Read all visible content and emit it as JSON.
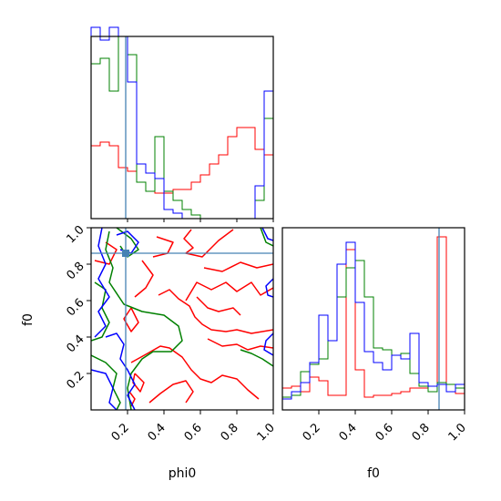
{
  "chart_data": {
    "type": "corner",
    "title": "",
    "parameters": [
      "phi0",
      "f0"
    ],
    "truth": {
      "phi0": 0.19,
      "f0": 0.86
    },
    "colors": {
      "red": "#ff0000",
      "green": "#008000",
      "blue": "#0000ff",
      "truth": "#4682b4"
    },
    "ticks": [
      "0.2",
      "0.4",
      "0.6",
      "0.8",
      "1.0"
    ],
    "xlabel_left": "phi0",
    "xlabel_right": "f0",
    "ylabel": "f0",
    "hist_phi0": {
      "edges": [
        0.0,
        0.05,
        0.1,
        0.15,
        0.2,
        0.25,
        0.3,
        0.35,
        0.4,
        0.45,
        0.5,
        0.55,
        0.6,
        0.65,
        0.7,
        0.75,
        0.8,
        0.85,
        0.9,
        0.95,
        1.0
      ],
      "series": [
        {
          "color": "red",
          "values": [
            0.4,
            0.42,
            0.4,
            0.28,
            0.26,
            0.2,
            0.15,
            0.14,
            0.14,
            0.16,
            0.16,
            0.2,
            0.24,
            0.3,
            0.35,
            0.45,
            0.5,
            0.5,
            0.38,
            0.35
          ]
        },
        {
          "color": "green",
          "values": [
            0.85,
            0.88,
            0.7,
            1.0,
            0.9,
            0.2,
            0.15,
            0.45,
            0.15,
            0.1,
            0.05,
            0.02,
            0.0,
            0.0,
            0.0,
            0.0,
            0.0,
            0.0,
            0.1,
            0.55
          ]
        },
        {
          "color": "blue",
          "values": [
            1.05,
            0.98,
            1.05,
            1.0,
            0.75,
            0.3,
            0.25,
            0.22,
            0.05,
            0.03,
            0.0,
            0.0,
            0.0,
            0.0,
            0.0,
            0.0,
            0.0,
            0.0,
            0.18,
            0.7
          ]
        }
      ]
    },
    "hist_f0": {
      "edges": [
        0.0,
        0.05,
        0.1,
        0.15,
        0.2,
        0.25,
        0.3,
        0.35,
        0.4,
        0.45,
        0.5,
        0.55,
        0.6,
        0.65,
        0.7,
        0.75,
        0.8,
        0.85,
        0.9,
        0.95,
        1.0
      ],
      "series": [
        {
          "color": "red",
          "values": [
            0.12,
            0.13,
            0.1,
            0.18,
            0.16,
            0.08,
            0.08,
            0.88,
            0.22,
            0.07,
            0.08,
            0.08,
            0.09,
            0.1,
            0.12,
            0.12,
            0.1,
            0.95,
            0.14,
            0.09
          ]
        },
        {
          "color": "green",
          "values": [
            0.07,
            0.08,
            0.21,
            0.25,
            0.28,
            0.38,
            0.62,
            0.78,
            0.82,
            0.62,
            0.34,
            0.33,
            0.3,
            0.31,
            0.2,
            0.13,
            0.1,
            0.15,
            0.14,
            0.12
          ]
        },
        {
          "color": "blue",
          "values": [
            0.06,
            0.1,
            0.15,
            0.26,
            0.52,
            0.38,
            0.8,
            0.92,
            0.59,
            0.32,
            0.26,
            0.22,
            0.3,
            0.28,
            0.42,
            0.15,
            0.13,
            0.14,
            0.1,
            0.14
          ]
        }
      ]
    },
    "contours": [
      {
        "color": "red",
        "points": [
          [
            0.55,
            0.99
          ],
          [
            0.51,
            0.94
          ],
          [
            0.56,
            0.89
          ],
          [
            0.52,
            0.86
          ],
          [
            0.61,
            0.84
          ],
          [
            0.7,
            0.93
          ],
          [
            0.78,
            0.99
          ]
        ]
      },
      {
        "color": "red",
        "points": [
          [
            0.62,
            0.78
          ],
          [
            0.72,
            0.76
          ],
          [
            0.82,
            0.81
          ],
          [
            0.91,
            0.78
          ],
          [
            1.0,
            0.8
          ]
        ]
      },
      {
        "color": "red",
        "points": [
          [
            0.52,
            0.6
          ],
          [
            0.58,
            0.7
          ],
          [
            0.66,
            0.66
          ],
          [
            0.74,
            0.7
          ],
          [
            0.8,
            0.65
          ],
          [
            0.88,
            0.7
          ],
          [
            0.93,
            0.63
          ],
          [
            1.0,
            0.67
          ]
        ]
      },
      {
        "color": "red",
        "points": [
          [
            0.58,
            0.62
          ],
          [
            0.64,
            0.56
          ],
          [
            0.7,
            0.54
          ],
          [
            0.78,
            0.56
          ],
          [
            0.82,
            0.52
          ]
        ]
      },
      {
        "color": "red",
        "points": [
          [
            0.37,
            0.63
          ],
          [
            0.43,
            0.66
          ],
          [
            0.48,
            0.61
          ],
          [
            0.54,
            0.57
          ],
          [
            0.57,
            0.51
          ],
          [
            0.61,
            0.47
          ],
          [
            0.66,
            0.44
          ],
          [
            0.74,
            0.43
          ],
          [
            0.8,
            0.44
          ],
          [
            0.88,
            0.42
          ],
          [
            1.0,
            0.44
          ]
        ]
      },
      {
        "color": "red",
        "points": [
          [
            0.64,
            0.39
          ],
          [
            0.72,
            0.35
          ],
          [
            0.8,
            0.36
          ],
          [
            0.86,
            0.33
          ],
          [
            0.93,
            0.35
          ],
          [
            1.0,
            0.34
          ]
        ]
      },
      {
        "color": "red",
        "points": [
          [
            0.22,
            0.26
          ],
          [
            0.31,
            0.31
          ],
          [
            0.38,
            0.35
          ],
          [
            0.43,
            0.34
          ],
          [
            0.5,
            0.29
          ],
          [
            0.55,
            0.22
          ],
          [
            0.6,
            0.17
          ],
          [
            0.66,
            0.15
          ],
          [
            0.72,
            0.19
          ],
          [
            0.8,
            0.17
          ],
          [
            0.86,
            0.11
          ],
          [
            0.92,
            0.06
          ]
        ]
      },
      {
        "color": "red",
        "points": [
          [
            0.32,
            0.04
          ],
          [
            0.38,
            0.09
          ],
          [
            0.45,
            0.14
          ],
          [
            0.52,
            0.16
          ],
          [
            0.56,
            0.1
          ],
          [
            0.52,
            0.04
          ]
        ]
      },
      {
        "color": "red",
        "points": [
          [
            0.36,
            0.95
          ],
          [
            0.45,
            0.92
          ],
          [
            0.42,
            0.86
          ],
          [
            0.34,
            0.84
          ]
        ]
      },
      {
        "color": "red",
        "points": [
          [
            0.28,
            0.82
          ],
          [
            0.34,
            0.74
          ],
          [
            0.3,
            0.67
          ],
          [
            0.24,
            0.62
          ]
        ]
      },
      {
        "color": "red",
        "points": [
          [
            0.22,
            0.56
          ],
          [
            0.26,
            0.48
          ],
          [
            0.22,
            0.43
          ],
          [
            0.18,
            0.5
          ],
          [
            0.22,
            0.56
          ]
        ]
      },
      {
        "color": "red",
        "points": [
          [
            0.08,
            0.92
          ],
          [
            0.14,
            0.88
          ],
          [
            0.1,
            0.8
          ],
          [
            0.02,
            0.82
          ]
        ]
      },
      {
        "color": "red",
        "points": [
          [
            0.24,
            0.2
          ],
          [
            0.29,
            0.15
          ],
          [
            0.27,
            0.1
          ],
          [
            0.23,
            0.15
          ],
          [
            0.24,
            0.2
          ]
        ]
      },
      {
        "color": "red",
        "points": [
          [
            0.21,
            0.1
          ],
          [
            0.24,
            0.06
          ],
          [
            0.22,
            0.02
          ]
        ]
      },
      {
        "color": "green",
        "points": [
          [
            0.1,
            0.98
          ],
          [
            0.08,
            0.88
          ],
          [
            0.12,
            0.78
          ],
          [
            0.1,
            0.7
          ],
          [
            0.18,
            0.58
          ],
          [
            0.28,
            0.54
          ],
          [
            0.4,
            0.52
          ],
          [
            0.48,
            0.46
          ],
          [
            0.5,
            0.38
          ],
          [
            0.44,
            0.32
          ],
          [
            0.34,
            0.32
          ],
          [
            0.28,
            0.28
          ],
          [
            0.22,
            0.2
          ],
          [
            0.2,
            0.12
          ],
          [
            0.22,
            0.0
          ]
        ]
      },
      {
        "color": "green",
        "points": [
          [
            0.02,
            0.7
          ],
          [
            0.08,
            0.66
          ],
          [
            0.06,
            0.56
          ],
          [
            0.1,
            0.48
          ],
          [
            0.06,
            0.4
          ],
          [
            0.0,
            0.38
          ]
        ]
      },
      {
        "color": "green",
        "points": [
          [
            0.0,
            0.3
          ],
          [
            0.08,
            0.26
          ],
          [
            0.14,
            0.2
          ],
          [
            0.12,
            0.12
          ],
          [
            0.16,
            0.04
          ],
          [
            0.14,
            0.0
          ]
        ]
      },
      {
        "color": "green",
        "points": [
          [
            0.14,
            1.0
          ],
          [
            0.22,
            0.94
          ],
          [
            0.26,
            0.88
          ],
          [
            0.2,
            0.84
          ],
          [
            0.16,
            0.9
          ]
        ]
      },
      {
        "color": "green",
        "points": [
          [
            0.82,
            0.33
          ],
          [
            0.88,
            0.31
          ],
          [
            0.94,
            0.28
          ],
          [
            1.0,
            0.24
          ]
        ]
      },
      {
        "color": "green",
        "points": [
          [
            0.93,
            1.0
          ],
          [
            0.96,
            0.92
          ],
          [
            1.0,
            0.9
          ]
        ]
      },
      {
        "color": "blue",
        "points": [
          [
            0.06,
            1.0
          ],
          [
            0.04,
            0.9
          ],
          [
            0.08,
            0.8
          ],
          [
            0.04,
            0.72
          ],
          [
            0.1,
            0.62
          ],
          [
            0.04,
            0.54
          ],
          [
            0.08,
            0.46
          ],
          [
            0.02,
            0.4
          ]
        ]
      },
      {
        "color": "blue",
        "points": [
          [
            0.08,
            0.4
          ],
          [
            0.14,
            0.42
          ],
          [
            0.18,
            0.36
          ],
          [
            0.16,
            0.28
          ],
          [
            0.2,
            0.22
          ],
          [
            0.24,
            0.14
          ],
          [
            0.2,
            0.08
          ],
          [
            0.24,
            0.0
          ]
        ]
      },
      {
        "color": "blue",
        "points": [
          [
            0.0,
            0.22
          ],
          [
            0.08,
            0.2
          ],
          [
            0.12,
            0.12
          ],
          [
            0.1,
            0.04
          ],
          [
            0.14,
            0.0
          ]
        ]
      },
      {
        "color": "blue",
        "points": [
          [
            0.14,
            0.96
          ],
          [
            0.2,
            0.98
          ],
          [
            0.26,
            0.92
          ],
          [
            0.22,
            0.86
          ],
          [
            0.16,
            0.88
          ]
        ]
      },
      {
        "color": "blue",
        "points": [
          [
            1.0,
            0.42
          ],
          [
            0.96,
            0.38
          ],
          [
            0.95,
            0.33
          ],
          [
            1.0,
            0.3
          ]
        ]
      },
      {
        "color": "blue",
        "points": [
          [
            1.0,
            0.72
          ],
          [
            0.96,
            0.68
          ],
          [
            0.97,
            0.63
          ],
          [
            1.0,
            0.62
          ]
        ]
      },
      {
        "color": "blue",
        "points": [
          [
            0.94,
            1.0
          ],
          [
            0.97,
            0.94
          ],
          [
            1.0,
            0.93
          ]
        ]
      }
    ]
  }
}
